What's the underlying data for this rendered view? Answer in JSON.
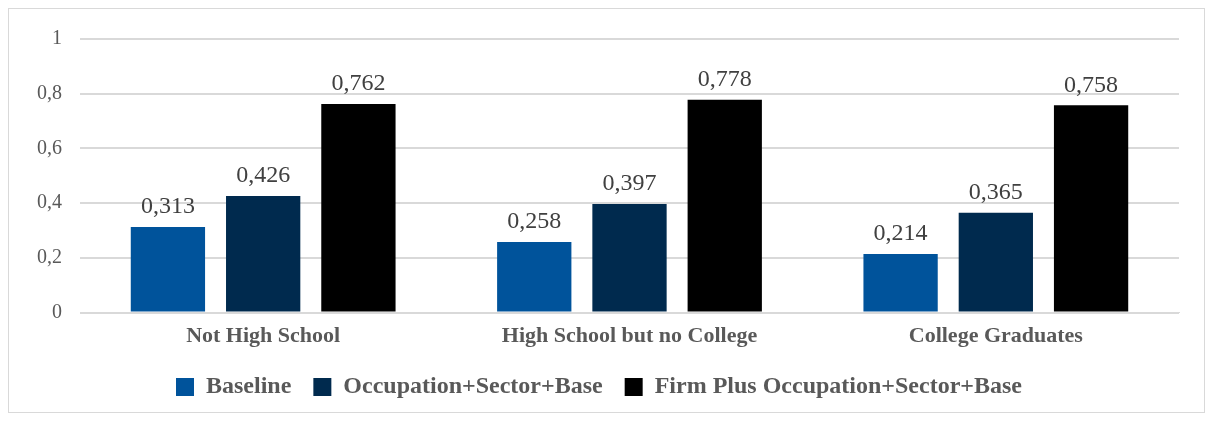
{
  "chart_data": {
    "type": "bar",
    "categories": [
      "Not High School",
      "High School but no College",
      "College Graduates"
    ],
    "series": [
      {
        "name": "Baseline",
        "color": "#00539b",
        "values": [
          0.313,
          0.258,
          0.214
        ],
        "value_labels": [
          "0,313",
          "0,258",
          "0,214"
        ]
      },
      {
        "name": "Occupation+Sector+Base",
        "color": "#002a4e",
        "values": [
          0.426,
          0.397,
          0.365
        ],
        "value_labels": [
          "0,426",
          "0,397",
          "0,365"
        ]
      },
      {
        "name": "Firm Plus Occupation+Sector+Base",
        "color": "#000000",
        "values": [
          0.762,
          0.778,
          0.758
        ],
        "value_labels": [
          "0,762",
          "0,778",
          "0,758"
        ]
      }
    ],
    "ylim": [
      0,
      1
    ],
    "yticks": [
      0,
      {
        "value": 0.2,
        "label": "0,2"
      },
      {
        "value": 0.4,
        "label": "0,4"
      },
      {
        "value": 0.6,
        "label": "0,6"
      },
      {
        "value": 0.8,
        "label": "0,8"
      },
      1
    ],
    "grid": "y",
    "legend": "bottom"
  }
}
